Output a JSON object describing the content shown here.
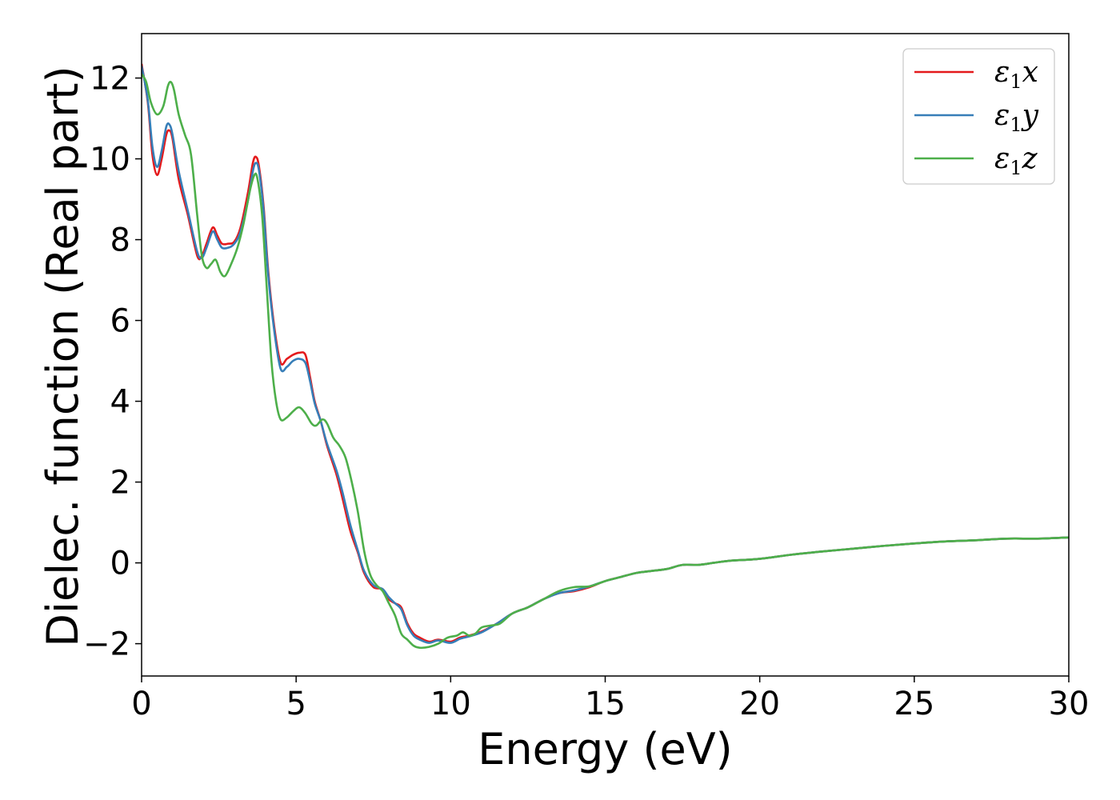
{
  "chart_data": {
    "type": "line",
    "xlabel": "Energy (eV)",
    "ylabel": "Dielec. function (Real part)",
    "xlim": [
      0,
      30
    ],
    "ylim": [
      -2.8,
      13.1
    ],
    "xticks": [
      0,
      5,
      10,
      15,
      20,
      25,
      30
    ],
    "xtick_labels": [
      "0",
      "5",
      "10",
      "15",
      "20",
      "25",
      "30"
    ],
    "yticks": [
      -2,
      0,
      2,
      4,
      6,
      8,
      10,
      12
    ],
    "ytick_labels": [
      "−2",
      "0",
      "2",
      "4",
      "6",
      "8",
      "10",
      "12"
    ],
    "grid": false,
    "legend_position": "top-right",
    "series": [
      {
        "name": "ε₁x",
        "legend_main": "ε",
        "legend_sub": "1",
        "legend_suffix": "x",
        "color": "#e41a1c",
        "points": [
          [
            0,
            12.35
          ],
          [
            0.2,
            11.4
          ],
          [
            0.35,
            10.1
          ],
          [
            0.5,
            9.6
          ],
          [
            0.65,
            10.0
          ],
          [
            0.8,
            10.6
          ],
          [
            0.9,
            10.7
          ],
          [
            1.0,
            10.5
          ],
          [
            1.2,
            9.5
          ],
          [
            1.5,
            8.6
          ],
          [
            1.8,
            7.6
          ],
          [
            1.95,
            7.6
          ],
          [
            2.1,
            7.9
          ],
          [
            2.3,
            8.3
          ],
          [
            2.45,
            8.1
          ],
          [
            2.6,
            7.9
          ],
          [
            2.8,
            7.9
          ],
          [
            3.0,
            7.95
          ],
          [
            3.2,
            8.3
          ],
          [
            3.45,
            9.2
          ],
          [
            3.6,
            9.9
          ],
          [
            3.7,
            10.05
          ],
          [
            3.8,
            9.8
          ],
          [
            3.95,
            8.8
          ],
          [
            4.1,
            7.2
          ],
          [
            4.3,
            5.8
          ],
          [
            4.5,
            4.95
          ],
          [
            4.7,
            5.05
          ],
          [
            4.9,
            5.15
          ],
          [
            5.1,
            5.2
          ],
          [
            5.3,
            5.15
          ],
          [
            5.45,
            4.6
          ],
          [
            5.6,
            4.0
          ],
          [
            5.8,
            3.5
          ],
          [
            6.0,
            2.9
          ],
          [
            6.3,
            2.2
          ],
          [
            6.5,
            1.6
          ],
          [
            6.75,
            0.8
          ],
          [
            7.0,
            0.25
          ],
          [
            7.2,
            -0.25
          ],
          [
            7.5,
            -0.6
          ],
          [
            7.8,
            -0.65
          ],
          [
            8.0,
            -0.9
          ],
          [
            8.2,
            -1.0
          ],
          [
            8.4,
            -1.1
          ],
          [
            8.6,
            -1.5
          ],
          [
            8.8,
            -1.75
          ],
          [
            9.0,
            -1.85
          ],
          [
            9.3,
            -1.95
          ],
          [
            9.6,
            -1.9
          ],
          [
            10.0,
            -1.95
          ],
          [
            10.3,
            -1.85
          ],
          [
            10.6,
            -1.8
          ],
          [
            11.0,
            -1.7
          ],
          [
            11.5,
            -1.5
          ],
          [
            12.0,
            -1.25
          ],
          [
            12.5,
            -1.1
          ],
          [
            13.0,
            -0.9
          ],
          [
            13.5,
            -0.75
          ],
          [
            14.0,
            -0.7
          ],
          [
            14.5,
            -0.6
          ],
          [
            15.0,
            -0.45
          ],
          [
            15.5,
            -0.35
          ],
          [
            16.0,
            -0.25
          ],
          [
            16.5,
            -0.2
          ],
          [
            17.0,
            -0.15
          ],
          [
            17.5,
            -0.05
          ],
          [
            18.0,
            -0.05
          ],
          [
            18.5,
            0.0
          ],
          [
            19.0,
            0.05
          ],
          [
            20.0,
            0.1
          ],
          [
            21.0,
            0.2
          ],
          [
            22.0,
            0.28
          ],
          [
            23.0,
            0.35
          ],
          [
            24.0,
            0.42
          ],
          [
            25.0,
            0.48
          ],
          [
            26.0,
            0.53
          ],
          [
            27.0,
            0.56
          ],
          [
            28.0,
            0.6
          ],
          [
            29.0,
            0.6
          ],
          [
            30.0,
            0.63
          ]
        ]
      },
      {
        "name": "ε₁y",
        "legend_main": "ε",
        "legend_sub": "1",
        "legend_suffix": "y",
        "color": "#377eb8",
        "points": [
          [
            0,
            12.3
          ],
          [
            0.2,
            11.45
          ],
          [
            0.35,
            10.3
          ],
          [
            0.5,
            9.8
          ],
          [
            0.65,
            10.2
          ],
          [
            0.8,
            10.8
          ],
          [
            0.9,
            10.85
          ],
          [
            1.0,
            10.6
          ],
          [
            1.2,
            9.7
          ],
          [
            1.5,
            8.7
          ],
          [
            1.8,
            7.7
          ],
          [
            1.95,
            7.55
          ],
          [
            2.1,
            7.8
          ],
          [
            2.3,
            8.2
          ],
          [
            2.45,
            8.0
          ],
          [
            2.6,
            7.8
          ],
          [
            2.8,
            7.8
          ],
          [
            3.0,
            7.9
          ],
          [
            3.2,
            8.2
          ],
          [
            3.45,
            9.0
          ],
          [
            3.6,
            9.7
          ],
          [
            3.7,
            9.9
          ],
          [
            3.8,
            9.7
          ],
          [
            3.95,
            8.7
          ],
          [
            4.1,
            7.1
          ],
          [
            4.3,
            5.7
          ],
          [
            4.5,
            4.8
          ],
          [
            4.7,
            4.85
          ],
          [
            4.9,
            5.0
          ],
          [
            5.1,
            5.05
          ],
          [
            5.3,
            4.95
          ],
          [
            5.45,
            4.5
          ],
          [
            5.6,
            3.95
          ],
          [
            5.8,
            3.5
          ],
          [
            6.0,
            2.95
          ],
          [
            6.3,
            2.3
          ],
          [
            6.5,
            1.75
          ],
          [
            6.75,
            0.95
          ],
          [
            7.0,
            0.3
          ],
          [
            7.2,
            -0.2
          ],
          [
            7.5,
            -0.55
          ],
          [
            7.8,
            -0.65
          ],
          [
            8.0,
            -0.85
          ],
          [
            8.2,
            -1.0
          ],
          [
            8.4,
            -1.15
          ],
          [
            8.6,
            -1.55
          ],
          [
            8.8,
            -1.8
          ],
          [
            9.0,
            -1.9
          ],
          [
            9.3,
            -1.98
          ],
          [
            9.6,
            -1.92
          ],
          [
            10.0,
            -1.98
          ],
          [
            10.3,
            -1.88
          ],
          [
            10.6,
            -1.82
          ],
          [
            11.0,
            -1.72
          ],
          [
            11.5,
            -1.5
          ],
          [
            12.0,
            -1.25
          ],
          [
            12.5,
            -1.1
          ],
          [
            13.0,
            -0.9
          ],
          [
            13.5,
            -0.75
          ],
          [
            14.0,
            -0.68
          ],
          [
            14.5,
            -0.58
          ],
          [
            15.0,
            -0.45
          ],
          [
            15.5,
            -0.35
          ],
          [
            16.0,
            -0.25
          ],
          [
            16.5,
            -0.2
          ],
          [
            17.0,
            -0.15
          ],
          [
            17.5,
            -0.05
          ],
          [
            18.0,
            -0.05
          ],
          [
            18.5,
            0.0
          ],
          [
            19.0,
            0.05
          ],
          [
            20.0,
            0.1
          ],
          [
            21.0,
            0.2
          ],
          [
            22.0,
            0.28
          ],
          [
            23.0,
            0.35
          ],
          [
            24.0,
            0.42
          ],
          [
            25.0,
            0.48
          ],
          [
            26.0,
            0.53
          ],
          [
            27.0,
            0.56
          ],
          [
            28.0,
            0.6
          ],
          [
            29.0,
            0.6
          ],
          [
            30.0,
            0.63
          ]
        ]
      },
      {
        "name": "ε₁z",
        "legend_main": "ε",
        "legend_sub": "1",
        "legend_suffix": "z",
        "color": "#4daf4a",
        "points": [
          [
            0,
            12.1
          ],
          [
            0.15,
            11.9
          ],
          [
            0.3,
            11.4
          ],
          [
            0.5,
            11.1
          ],
          [
            0.7,
            11.3
          ],
          [
            0.85,
            11.8
          ],
          [
            0.95,
            11.9
          ],
          [
            1.05,
            11.7
          ],
          [
            1.2,
            11.1
          ],
          [
            1.4,
            10.6
          ],
          [
            1.6,
            10.1
          ],
          [
            1.8,
            8.6
          ],
          [
            1.95,
            7.6
          ],
          [
            2.1,
            7.3
          ],
          [
            2.25,
            7.4
          ],
          [
            2.4,
            7.5
          ],
          [
            2.55,
            7.2
          ],
          [
            2.7,
            7.1
          ],
          [
            2.9,
            7.4
          ],
          [
            3.1,
            7.8
          ],
          [
            3.3,
            8.4
          ],
          [
            3.5,
            9.2
          ],
          [
            3.65,
            9.6
          ],
          [
            3.75,
            9.5
          ],
          [
            3.9,
            8.6
          ],
          [
            4.05,
            6.8
          ],
          [
            4.2,
            5.0
          ],
          [
            4.35,
            4.0
          ],
          [
            4.5,
            3.55
          ],
          [
            4.7,
            3.6
          ],
          [
            4.9,
            3.75
          ],
          [
            5.1,
            3.85
          ],
          [
            5.3,
            3.7
          ],
          [
            5.5,
            3.45
          ],
          [
            5.65,
            3.4
          ],
          [
            5.85,
            3.55
          ],
          [
            6.0,
            3.45
          ],
          [
            6.2,
            3.1
          ],
          [
            6.4,
            2.9
          ],
          [
            6.6,
            2.6
          ],
          [
            6.8,
            2.0
          ],
          [
            7.0,
            1.25
          ],
          [
            7.2,
            0.3
          ],
          [
            7.4,
            -0.3
          ],
          [
            7.6,
            -0.55
          ],
          [
            7.8,
            -0.7
          ],
          [
            8.0,
            -1.0
          ],
          [
            8.2,
            -1.3
          ],
          [
            8.4,
            -1.75
          ],
          [
            8.6,
            -1.9
          ],
          [
            8.8,
            -2.05
          ],
          [
            9.0,
            -2.1
          ],
          [
            9.3,
            -2.08
          ],
          [
            9.6,
            -2.0
          ],
          [
            9.9,
            -1.85
          ],
          [
            10.2,
            -1.8
          ],
          [
            10.4,
            -1.72
          ],
          [
            10.6,
            -1.8
          ],
          [
            10.8,
            -1.75
          ],
          [
            11.0,
            -1.6
          ],
          [
            11.3,
            -1.55
          ],
          [
            11.6,
            -1.5
          ],
          [
            12.0,
            -1.25
          ],
          [
            12.5,
            -1.1
          ],
          [
            13.0,
            -0.9
          ],
          [
            13.5,
            -0.7
          ],
          [
            14.0,
            -0.6
          ],
          [
            14.5,
            -0.58
          ],
          [
            15.0,
            -0.45
          ],
          [
            15.5,
            -0.35
          ],
          [
            16.0,
            -0.25
          ],
          [
            16.5,
            -0.2
          ],
          [
            17.0,
            -0.15
          ],
          [
            17.5,
            -0.05
          ],
          [
            18.0,
            -0.05
          ],
          [
            18.5,
            0.0
          ],
          [
            19.0,
            0.05
          ],
          [
            20.0,
            0.1
          ],
          [
            21.0,
            0.2
          ],
          [
            22.0,
            0.28
          ],
          [
            23.0,
            0.35
          ],
          [
            24.0,
            0.42
          ],
          [
            25.0,
            0.48
          ],
          [
            26.0,
            0.53
          ],
          [
            27.0,
            0.56
          ],
          [
            28.0,
            0.6
          ],
          [
            29.0,
            0.6
          ],
          [
            30.0,
            0.63
          ]
        ]
      }
    ]
  }
}
